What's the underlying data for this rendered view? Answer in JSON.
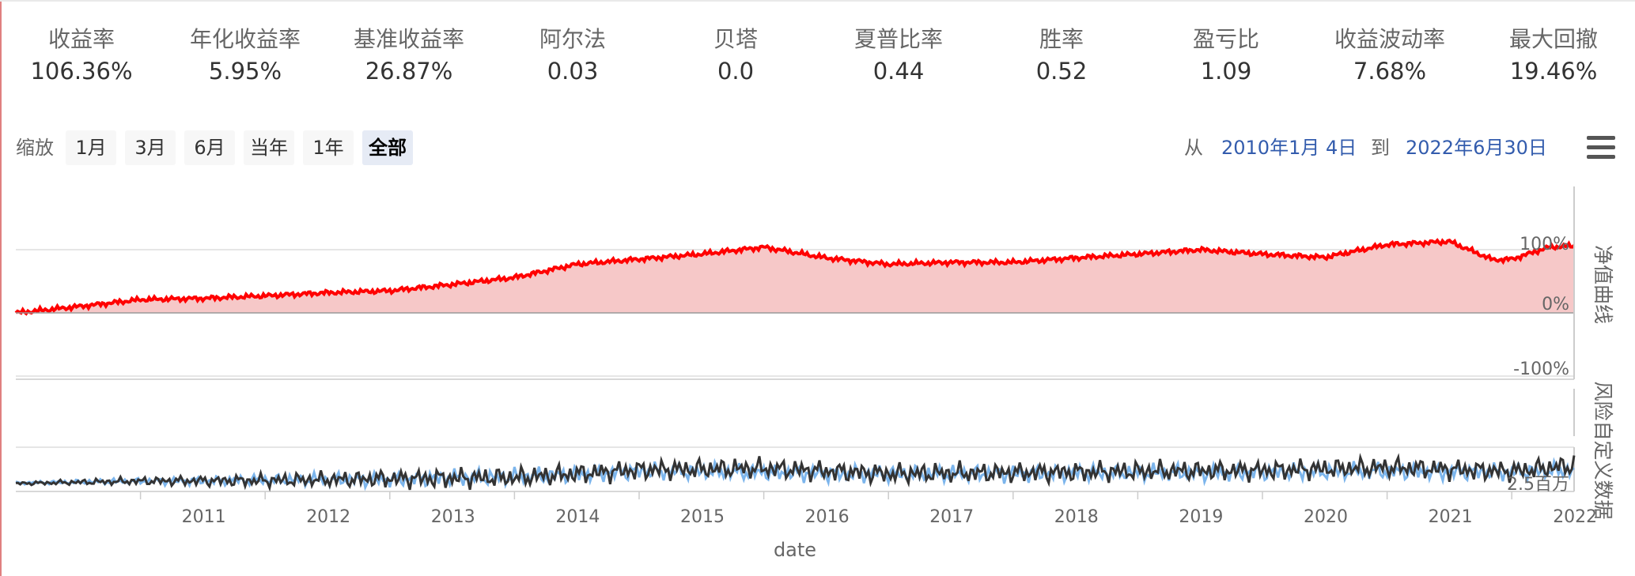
{
  "stats": [
    {
      "label": "收益率",
      "value": "106.36%"
    },
    {
      "label": "年化收益率",
      "value": "5.95%"
    },
    {
      "label": "基准收益率",
      "value": "26.87%"
    },
    {
      "label": "阿尔法",
      "value": "0.03"
    },
    {
      "label": "贝塔",
      "value": "0.0"
    },
    {
      "label": "夏普比率",
      "value": "0.44"
    },
    {
      "label": "胜率",
      "value": "0.52"
    },
    {
      "label": "盈亏比",
      "value": "1.09"
    },
    {
      "label": "收益波动率",
      "value": "7.68%"
    },
    {
      "label": "最大回撤",
      "value": "19.46%"
    }
  ],
  "range_selector": {
    "zoom_label": "缩放",
    "buttons": [
      "1月",
      "3月",
      "6月",
      "当年",
      "1年",
      "全部"
    ],
    "active": "全部",
    "from_label": "从",
    "from_date": "2010年1月 4日",
    "to_label": "到",
    "to_date": "2022年6月30日"
  },
  "colors": {
    "net_value_line": "#ff0000",
    "net_value_fill": "#f6c8c8",
    "series_light": "#7cb5ec",
    "series_dark": "#333333",
    "link": "#335cad"
  },
  "chart_data": [
    {
      "type": "area",
      "ylabel": "净值曲线",
      "yticks": [
        "100%",
        "0%",
        "-100%"
      ],
      "ylim": [
        -100,
        100
      ],
      "x": [
        2010.0,
        2010.5,
        2011.0,
        2011.5,
        2012.0,
        2012.5,
        2013.0,
        2013.5,
        2014.0,
        2014.5,
        2015.0,
        2015.5,
        2016.0,
        2016.5,
        2017.0,
        2017.5,
        2018.0,
        2018.5,
        2019.0,
        2019.5,
        2020.0,
        2020.5,
        2021.0,
        2021.5,
        2021.85,
        2022.0,
        2022.3,
        2022.5
      ],
      "values": [
        0,
        10,
        21,
        23,
        27,
        32,
        35,
        45,
        56,
        77,
        85,
        93,
        104,
        87,
        77,
        80,
        80,
        87,
        93,
        100,
        93,
        88,
        108,
        113,
        84,
        85,
        104,
        106
      ]
    },
    {
      "type": "line",
      "ylabel": "风险自定义数据",
      "yticks": [
        "2.5百万"
      ],
      "series": [
        {
          "name": "",
          "x": [
            2010.0,
            2011.0,
            2012.0,
            2013.0,
            2014.0,
            2015.0,
            2016.0,
            2017.0,
            2018.0,
            2019.0,
            2020.0,
            2021.0,
            2022.0,
            2022.5
          ],
          "values": [
            0.6,
            1.0,
            1.2,
            1.4,
            1.8,
            3.0,
            2.8,
            2.4,
            2.6,
            2.7,
            2.8,
            3.0,
            2.8,
            3.2
          ]
        },
        {
          "name": "",
          "x": [
            2010.0,
            2011.0,
            2012.0,
            2013.0,
            2014.0,
            2015.0,
            2016.0,
            2017.0,
            2018.0,
            2019.0,
            2020.0,
            2021.0,
            2022.0,
            2022.5
          ],
          "values": [
            0.5,
            1.0,
            1.1,
            1.5,
            1.7,
            3.3,
            3.6,
            2.5,
            2.7,
            3.0,
            3.2,
            3.8,
            3.0,
            4.2
          ]
        }
      ]
    }
  ],
  "x_axis": {
    "label": "date",
    "ticks": [
      "2011",
      "2012",
      "2013",
      "2014",
      "2015",
      "2016",
      "2017",
      "2018",
      "2019",
      "2020",
      "2021",
      "2022"
    ]
  }
}
